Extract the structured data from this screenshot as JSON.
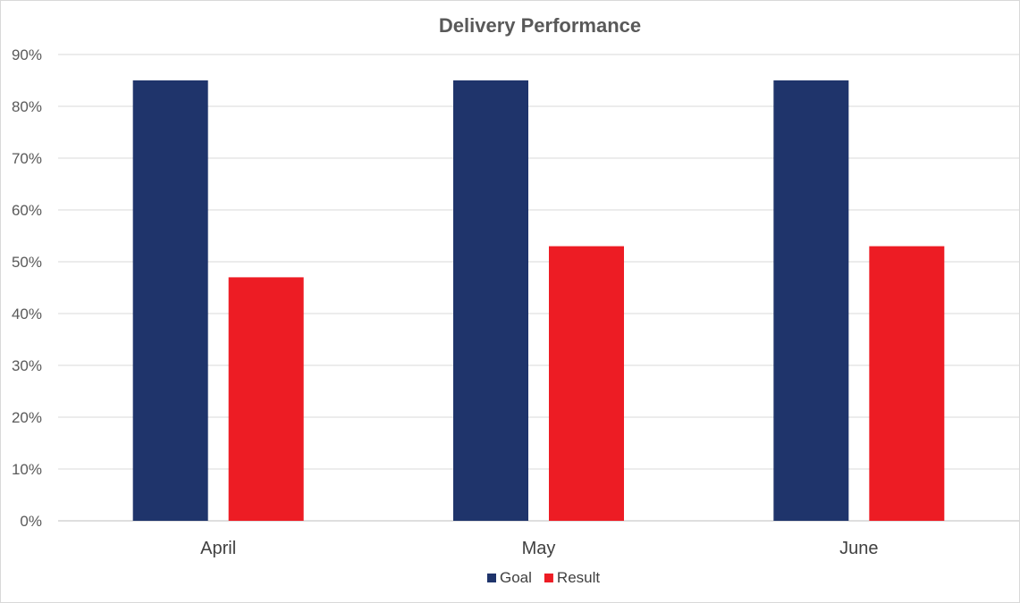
{
  "chart_data": {
    "type": "bar",
    "title": "Delivery Performance",
    "categories": [
      "April",
      "May",
      "June"
    ],
    "series": [
      {
        "name": "Goal",
        "values": [
          85,
          85,
          85
        ],
        "color": "#1f346b"
      },
      {
        "name": "Result",
        "values": [
          47,
          53,
          53
        ],
        "color": "#ed1c24"
      }
    ],
    "ylim": [
      0,
      90
    ],
    "yticks": [
      0,
      10,
      20,
      30,
      40,
      50,
      60,
      70,
      80,
      90
    ],
    "ytick_labels": [
      "0%",
      "10%",
      "20%",
      "30%",
      "40%",
      "50%",
      "60%",
      "70%",
      "80%",
      "90%"
    ],
    "grid": true,
    "legend": "bottom"
  }
}
